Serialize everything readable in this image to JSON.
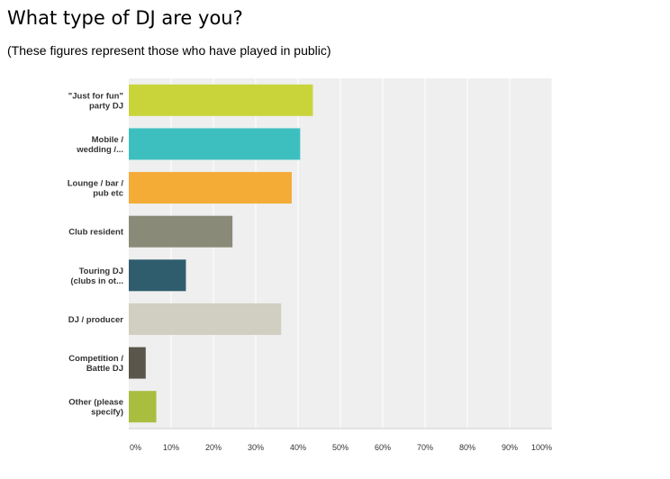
{
  "title": "What type of DJ are you?",
  "subtitle": "(These figures represent those who have played in public)",
  "chart_data": {
    "type": "bar",
    "orientation": "horizontal",
    "categories": [
      [
        "\"Just for fun\"",
        "party DJ"
      ],
      [
        "Mobile /",
        "wedding /..."
      ],
      [
        "Lounge / bar /",
        "pub etc"
      ],
      [
        "Club resident"
      ],
      [
        "Touring DJ",
        "(clubs in ot..."
      ],
      [
        "DJ / producer"
      ],
      [
        "Competition /",
        "Battle DJ"
      ],
      [
        "Other (please",
        "specify)"
      ]
    ],
    "values": [
      43.5,
      40.5,
      38.5,
      24.5,
      13.5,
      36,
      4,
      6.5
    ],
    "colors": [
      "#c9d43b",
      "#3ebfbf",
      "#f5ac36",
      "#8a8a78",
      "#2f5d6e",
      "#d1cfc2",
      "#5a564c",
      "#a9bd3f"
    ],
    "xlim": [
      0,
      100
    ],
    "xticks": [
      "0%",
      "10%",
      "20%",
      "30%",
      "40%",
      "50%",
      "60%",
      "70%",
      "80%",
      "90%",
      "100%"
    ],
    "grid": true
  }
}
